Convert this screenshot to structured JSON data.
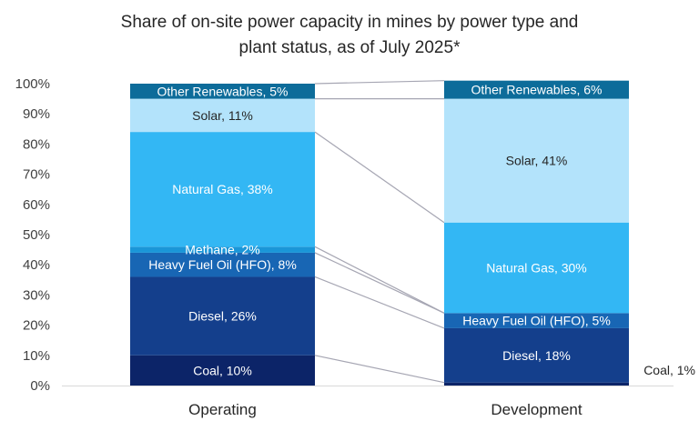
{
  "chart_data": {
    "type": "bar",
    "stacked": true,
    "percent": true,
    "title_lines": [
      "Share of on-site power capacity in mines by power type and",
      "plant status, as of July 2025*"
    ],
    "categories": [
      "Operating",
      "Development"
    ],
    "yticks": [
      "0%",
      "10%",
      "20%",
      "30%",
      "40%",
      "50%",
      "60%",
      "70%",
      "80%",
      "90%",
      "100%"
    ],
    "ylim": [
      0,
      100
    ],
    "grid": false,
    "legend": "none",
    "connector_lines": true,
    "series": [
      {
        "name": "Coal",
        "values": [
          10,
          1
        ],
        "color": "#0c2468",
        "labels": [
          "Coal, 10%",
          "Coal, 1%"
        ],
        "label_colors": [
          "#ffffff",
          "#262626"
        ],
        "label_outside": [
          false,
          true
        ]
      },
      {
        "name": "Diesel",
        "values": [
          26,
          18
        ],
        "color": "#143f8c",
        "labels": [
          "Diesel, 26%",
          "Diesel, 18%"
        ],
        "label_colors": [
          "#ffffff",
          "#ffffff"
        ],
        "label_outside": [
          false,
          false
        ]
      },
      {
        "name": "Heavy Fuel Oil (HFO)",
        "values": [
          8,
          5
        ],
        "color": "#1866b4",
        "labels": [
          "Heavy Fuel Oil (HFO), 8%",
          "Heavy Fuel Oil (HFO), 5%"
        ],
        "label_colors": [
          "#ffffff",
          "#ffffff"
        ],
        "label_outside": [
          false,
          false
        ]
      },
      {
        "name": "Methane",
        "values": [
          2,
          0
        ],
        "color": "#1a96d8",
        "labels": [
          "Methane, 2%",
          ""
        ],
        "label_colors": [
          "#ffffff",
          "#ffffff"
        ],
        "label_outside": [
          false,
          false
        ]
      },
      {
        "name": "Natural Gas",
        "values": [
          38,
          30
        ],
        "color": "#33b7f4",
        "labels": [
          "Natural Gas, 38%",
          "Natural Gas, 30%"
        ],
        "label_colors": [
          "#ffffff",
          "#ffffff"
        ],
        "label_outside": [
          false,
          false
        ]
      },
      {
        "name": "Solar",
        "values": [
          11,
          41
        ],
        "color": "#b3e3fb",
        "labels": [
          "Solar, 11%",
          "Solar, 41%"
        ],
        "label_colors": [
          "#262626",
          "#262626"
        ],
        "label_outside": [
          false,
          false
        ]
      },
      {
        "name": "Other Renewables",
        "values": [
          5,
          6
        ],
        "color": "#0d6c9a",
        "labels": [
          "Other Renewables, 5%",
          "Other Renewables, 6%"
        ],
        "label_colors": [
          "#ffffff",
          "#ffffff"
        ],
        "label_outside": [
          false,
          false
        ]
      }
    ]
  }
}
